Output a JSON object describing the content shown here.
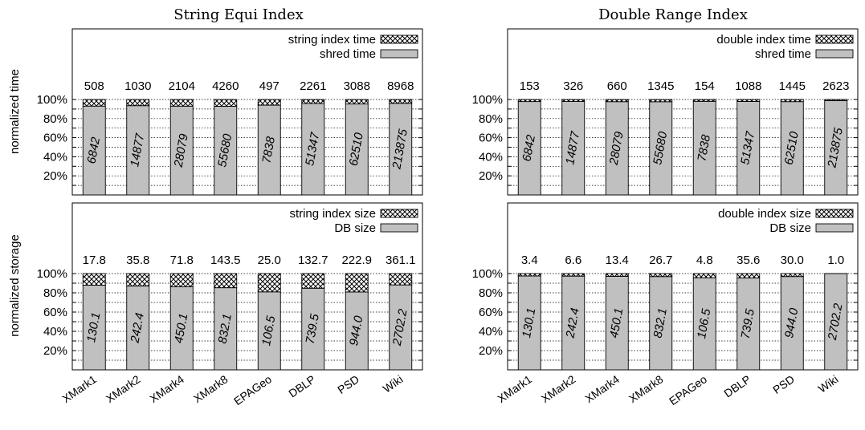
{
  "column_titles": [
    "String Equi Index",
    "Double Range Index"
  ],
  "row_labels": [
    "normalized time",
    "normalized storage"
  ],
  "y_ticks": [
    "20%",
    "40%",
    "60%",
    "80%",
    "100%"
  ],
  "colors": {
    "base_fill": "#c0c0c0",
    "top_pattern": "crosshatch",
    "grid": "#000000"
  },
  "chart_data": [
    {
      "type": "bar",
      "stacked": true,
      "normalized": true,
      "title": "String Equi Index",
      "ylabel": "normalized time",
      "ylim": [
        0,
        100
      ],
      "grid": true,
      "legend_position": "top-right",
      "categories": [
        "XMark1",
        "XMark2",
        "XMark4",
        "XMark8",
        "EPAGeo",
        "DBLP",
        "PSD",
        "Wiki"
      ],
      "show_category_labels": false,
      "series": [
        {
          "name": "shred time",
          "values": [
            6842,
            14877,
            28079,
            55680,
            7838,
            51347,
            62510,
            213875
          ],
          "labels": [
            "6842",
            "14877",
            "28079",
            "55680",
            "7838",
            "51347",
            "62510",
            "213875"
          ]
        },
        {
          "name": "string index time",
          "values": [
            508,
            1030,
            2104,
            4260,
            497,
            2261,
            3088,
            8968
          ],
          "labels": [
            "508",
            "1030",
            "2104",
            "4260",
            "497",
            "2261",
            "3088",
            "8968"
          ]
        }
      ]
    },
    {
      "type": "bar",
      "stacked": true,
      "normalized": true,
      "title": "Double Range Index",
      "ylabel": "",
      "ylim": [
        0,
        100
      ],
      "grid": true,
      "legend_position": "top-right",
      "categories": [
        "XMark1",
        "XMark2",
        "XMark4",
        "XMark8",
        "EPAGeo",
        "DBLP",
        "PSD",
        "Wiki"
      ],
      "show_category_labels": false,
      "series": [
        {
          "name": "shred time",
          "values": [
            6842,
            14877,
            28079,
            55680,
            7838,
            51347,
            62510,
            213875
          ],
          "labels": [
            "6842",
            "14877",
            "28079",
            "55680",
            "7838",
            "51347",
            "62510",
            "213875"
          ]
        },
        {
          "name": "double index time",
          "values": [
            153,
            326,
            660,
            1345,
            154,
            1088,
            1445,
            2623
          ],
          "labels": [
            "153",
            "326",
            "660",
            "1345",
            "154",
            "1088",
            "1445",
            "2623"
          ]
        }
      ]
    },
    {
      "type": "bar",
      "stacked": true,
      "normalized": true,
      "title": "",
      "ylabel": "normalized storage",
      "ylim": [
        0,
        100
      ],
      "grid": true,
      "legend_position": "top-right",
      "categories": [
        "XMark1",
        "XMark2",
        "XMark4",
        "XMark8",
        "EPAGeo",
        "DBLP",
        "PSD",
        "Wiki"
      ],
      "show_category_labels": true,
      "series": [
        {
          "name": "DB size",
          "values": [
            130.1,
            242.4,
            450.1,
            832.1,
            106.5,
            739.5,
            944.0,
            2702.2
          ],
          "labels": [
            "130.1",
            "242.4",
            "450.1",
            "832.1",
            "106.5",
            "739.5",
            "944.0",
            "2702.2"
          ]
        },
        {
          "name": "string index size",
          "values": [
            17.8,
            35.8,
            71.8,
            143.5,
            25.0,
            132.7,
            222.9,
            361.1
          ],
          "labels": [
            "17.8",
            "35.8",
            "71.8",
            "143.5",
            "25.0",
            "132.7",
            "222.9",
            "361.1"
          ]
        }
      ]
    },
    {
      "type": "bar",
      "stacked": true,
      "normalized": true,
      "title": "",
      "ylabel": "",
      "ylim": [
        0,
        100
      ],
      "grid": true,
      "legend_position": "top-right",
      "categories": [
        "XMark1",
        "XMark2",
        "XMark4",
        "XMark8",
        "EPAGeo",
        "DBLP",
        "PSD",
        "Wiki"
      ],
      "show_category_labels": true,
      "series": [
        {
          "name": "DB size",
          "values": [
            130.1,
            242.4,
            450.1,
            832.1,
            106.5,
            739.5,
            944.0,
            2702.2
          ],
          "labels": [
            "130.1",
            "242.4",
            "450.1",
            "832.1",
            "106.5",
            "739.5",
            "944.0",
            "2702.2"
          ]
        },
        {
          "name": "double index size",
          "values": [
            3.4,
            6.6,
            13.4,
            26.7,
            4.8,
            35.6,
            30.0,
            1.0
          ],
          "labels": [
            "3.4",
            "6.6",
            "13.4",
            "26.7",
            "4.8",
            "35.6",
            "30.0",
            "1.0"
          ]
        }
      ]
    }
  ]
}
